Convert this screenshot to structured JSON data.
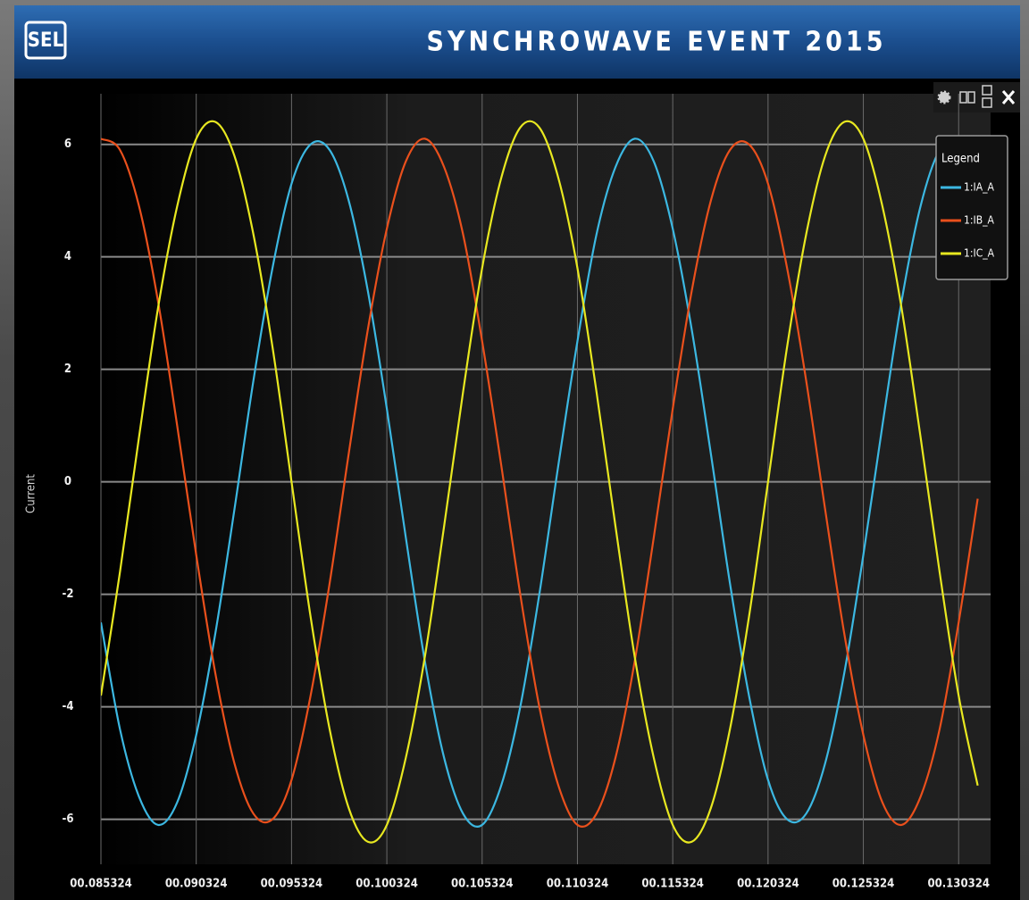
{
  "chart_data": {
    "type": "line",
    "logo": "SEL",
    "title": "SYNCHROWAVE EVENT 2015",
    "ylabel": "Current",
    "legend_title": "Legend",
    "legend": "upper right",
    "grid": true,
    "xlim": [
      0.085324,
      0.132
    ],
    "ylim": [
      -6.8,
      6.9
    ],
    "xticks": [
      {
        "value": 0.085324,
        "label": "00.085324"
      },
      {
        "value": 0.090324,
        "label": "00.090324"
      },
      {
        "value": 0.095324,
        "label": "00.095324"
      },
      {
        "value": 0.100324,
        "label": "00.100324"
      },
      {
        "value": 0.105324,
        "label": "00.105324"
      },
      {
        "value": 0.110324,
        "label": "00.110324"
      },
      {
        "value": 0.115324,
        "label": "00.115324"
      },
      {
        "value": 0.120324,
        "label": "00.120324"
      },
      {
        "value": 0.125324,
        "label": "00.125324"
      },
      {
        "value": 0.130324,
        "label": "00.130324"
      }
    ],
    "yticks": [
      6,
      4,
      2,
      0,
      -2,
      -4,
      -6
    ],
    "x": [
      0.085324,
      0.086324,
      0.087324,
      0.088324,
      0.089324,
      0.090324,
      0.091324,
      0.092324,
      0.093324,
      0.094324,
      0.095324,
      0.096324,
      0.097324,
      0.098324,
      0.099324,
      0.100324,
      0.101324,
      0.102324,
      0.103324,
      0.104324,
      0.105324,
      0.106324,
      0.107324,
      0.108324,
      0.109324,
      0.110324,
      0.111324,
      0.112324,
      0.113324,
      0.114324,
      0.115324,
      0.116324,
      0.117324,
      0.118324,
      0.119324,
      0.120324,
      0.121324,
      0.122324,
      0.123324,
      0.124324,
      0.125324,
      0.126324,
      0.127324,
      0.128324,
      0.129324,
      0.130324,
      0.131324
    ],
    "series": [
      {
        "name": "1:IA_A",
        "color": "#3cb8e2",
        "values": [
          -2.5,
          -4.4,
          -5.6,
          -6.1,
          -5.7,
          -4.5,
          -2.7,
          -0.5,
          1.8,
          3.8,
          5.3,
          6.0,
          5.9,
          5.0,
          3.4,
          1.3,
          -1.0,
          -3.2,
          -4.9,
          -5.9,
          -6.1,
          -5.4,
          -4.0,
          -2.0,
          0.3,
          2.5,
          4.4,
          5.6,
          6.1,
          5.7,
          4.5,
          2.7,
          0.5,
          -1.8,
          -3.8,
          -5.3,
          -6.0,
          -5.9,
          -5.0,
          -3.4,
          -1.3,
          1.0,
          3.2,
          4.9,
          5.9,
          6.1,
          5.4
        ]
      },
      {
        "name": "1:IB_A",
        "color": "#ea501c",
        "values": [
          6.1,
          5.9,
          4.9,
          3.2,
          1.0,
          -1.3,
          -3.4,
          -5.0,
          -5.9,
          -6.0,
          -5.3,
          -3.8,
          -1.8,
          0.5,
          2.7,
          4.5,
          5.7,
          6.1,
          5.6,
          4.4,
          2.5,
          0.3,
          -2.0,
          -4.0,
          -5.4,
          -6.1,
          -5.9,
          -4.9,
          -3.2,
          -1.0,
          1.3,
          3.4,
          5.0,
          5.9,
          6.0,
          5.3,
          3.8,
          1.8,
          -0.5,
          -2.7,
          -4.5,
          -5.7,
          -6.1,
          -5.6,
          -4.4,
          -2.5,
          -0.3
        ]
      },
      {
        "name": "1:IC_A",
        "color": "#e8e820",
        "values": [
          -3.8,
          -1.6,
          0.8,
          3.1,
          4.9,
          6.1,
          6.4,
          5.8,
          4.4,
          2.4,
          0.0,
          -2.4,
          -4.4,
          -5.8,
          -6.4,
          -6.1,
          -4.9,
          -3.1,
          -0.8,
          1.6,
          3.8,
          5.4,
          6.3,
          6.3,
          5.4,
          3.8,
          1.6,
          -0.8,
          -3.1,
          -4.9,
          -6.1,
          -6.4,
          -5.8,
          -4.4,
          -2.4,
          0.0,
          2.4,
          4.4,
          5.8,
          6.4,
          6.1,
          4.9,
          3.1,
          0.8,
          -1.6,
          -3.8,
          -5.4
        ]
      }
    ]
  }
}
